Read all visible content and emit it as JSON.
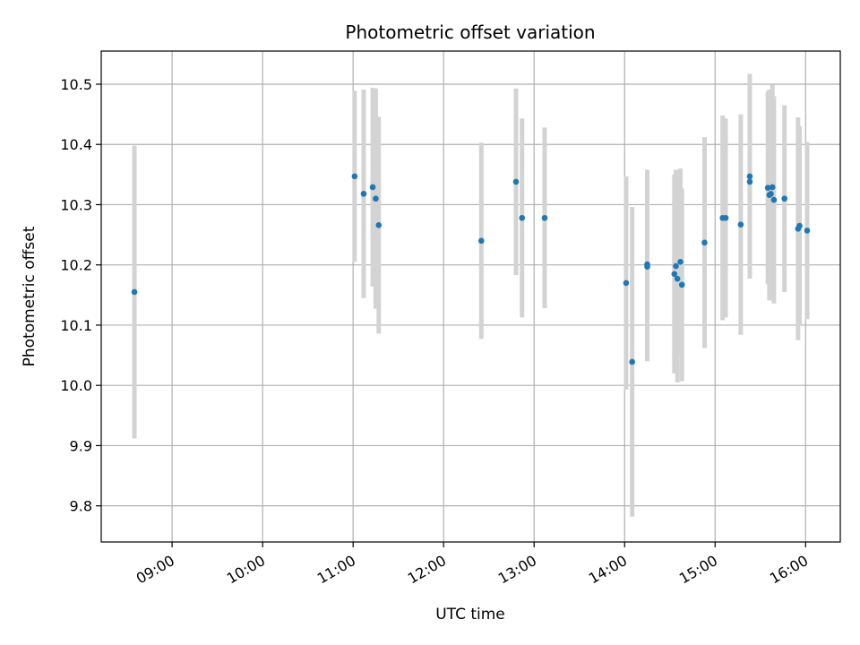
{
  "chart_data": {
    "type": "scatter",
    "title": "Photometric offset variation",
    "xlabel": "UTC time",
    "ylabel": "Photometric offset",
    "x_unit": "UTC time (HH:MM)",
    "xlim": [
      "08:13",
      "16:23"
    ],
    "ylim": [
      9.74,
      10.555
    ],
    "grid": true,
    "x_ticks": [
      "09:00",
      "10:00",
      "11:00",
      "12:00",
      "13:00",
      "14:00",
      "15:00",
      "16:00"
    ],
    "y_ticks": [
      9.8,
      9.9,
      10.0,
      10.1,
      10.2,
      10.3,
      10.4,
      10.5
    ],
    "point_color": "#1f77b4",
    "errorbar_color": "#d3d3d3",
    "points": [
      {
        "x": "08:35",
        "y": 10.155,
        "err": 0.243
      },
      {
        "x": "11:01",
        "y": 10.347,
        "err": 0.142
      },
      {
        "x": "11:07",
        "y": 10.318,
        "err": 0.173
      },
      {
        "x": "11:13",
        "y": 10.329,
        "err": 0.165
      },
      {
        "x": "11:15",
        "y": 10.31,
        "err": 0.183
      },
      {
        "x": "11:17",
        "y": 10.266,
        "err": 0.18
      },
      {
        "x": "12:25",
        "y": 10.24,
        "err": 0.163
      },
      {
        "x": "12:48",
        "y": 10.338,
        "err": 0.155
      },
      {
        "x": "12:52",
        "y": 10.278,
        "err": 0.165
      },
      {
        "x": "13:07",
        "y": 10.278,
        "err": 0.15
      },
      {
        "x": "14:01",
        "y": 10.17,
        "err": 0.177
      },
      {
        "x": "14:05",
        "y": 10.039,
        "err": 0.257
      },
      {
        "x": "14:15",
        "y": 10.201,
        "err": 0.157
      },
      {
        "x": "14:15",
        "y": 10.197,
        "err": 0.157
      },
      {
        "x": "14:33",
        "y": 10.185,
        "err": 0.165
      },
      {
        "x": "14:34",
        "y": 10.198,
        "err": 0.16
      },
      {
        "x": "14:35",
        "y": 10.177,
        "err": 0.172
      },
      {
        "x": "14:37",
        "y": 10.205,
        "err": 0.155
      },
      {
        "x": "14:38",
        "y": 10.167,
        "err": 0.16
      },
      {
        "x": "14:53",
        "y": 10.237,
        "err": 0.175
      },
      {
        "x": "15:05",
        "y": 10.278,
        "err": 0.17
      },
      {
        "x": "15:07",
        "y": 10.278,
        "err": 0.165
      },
      {
        "x": "15:17",
        "y": 10.267,
        "err": 0.183
      },
      {
        "x": "15:23",
        "y": 10.347,
        "err": 0.17
      },
      {
        "x": "15:23",
        "y": 10.338,
        "err": 0.16
      },
      {
        "x": "15:35",
        "y": 10.328,
        "err": 0.16
      },
      {
        "x": "15:36",
        "y": 10.316,
        "err": 0.175
      },
      {
        "x": "15:37",
        "y": 10.318,
        "err": 0.17
      },
      {
        "x": "15:38",
        "y": 10.329,
        "err": 0.17
      },
      {
        "x": "15:39",
        "y": 10.308,
        "err": 0.172
      },
      {
        "x": "15:46",
        "y": 10.31,
        "err": 0.155
      },
      {
        "x": "15:55",
        "y": 10.26,
        "err": 0.185
      },
      {
        "x": "15:56",
        "y": 10.265,
        "err": 0.165
      },
      {
        "x": "16:01",
        "y": 10.257,
        "err": 0.147
      }
    ]
  }
}
